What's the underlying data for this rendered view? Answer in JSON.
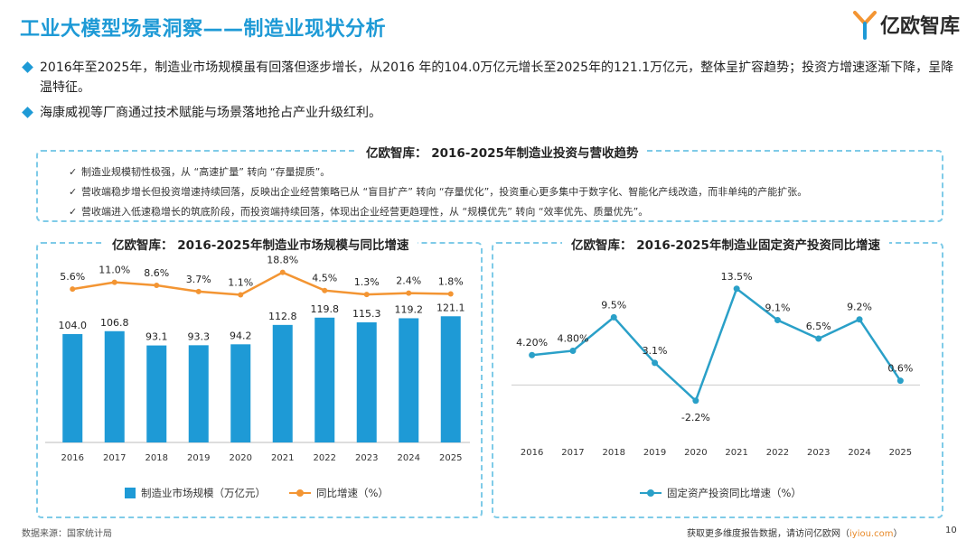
{
  "header": {
    "title": "工业大模型场景洞察——制造业现状分析",
    "logo_text": "亿欧智库"
  },
  "bullets": [
    "2016年至2025年，制造业市场规模虽有回落但逐步增长，从2016 年的104.0万亿元增长至2025年的121.1万亿元，整体呈扩容趋势；投资方增速逐渐下降，呈降温特征。",
    "海康威视等厂商通过技术赋能与场景落地抢占产业升级红利。"
  ],
  "summary_box": {
    "title": "亿欧智库： 2016-2025年制造业投资与营收趋势",
    "checks": [
      "制造业规模韧性极强，从 “高速扩量” 转向 “存量提质”。",
      "营收端稳步增长但投资增速持续回落，反映出企业经营策略已从 “盲目扩产” 转向 “存量优化”，投资重心更多集中于数字化、智能化产线改造，而非单纯的产能扩张。",
      "营收端进入低速稳增长的筑底阶段，而投资端持续回落，体现出企业经营更趋理性，从 “规模优先” 转向 “效率优先、质量优先”。"
    ],
    "check_mark": "✓"
  },
  "colors": {
    "accent": "#1e9ad6",
    "bar": "#1e9ad6",
    "growth_line": "#f39533",
    "invest_line": "#2aa0c8",
    "dashed_border": "#7fcbe8"
  },
  "chart_data": [
    {
      "type": "bar",
      "title": "亿欧智库： 2016-2025年制造业市场规模与同比增速",
      "categories": [
        "2016",
        "2017",
        "2018",
        "2019",
        "2020",
        "2021",
        "2022",
        "2023",
        "2024",
        "2025"
      ],
      "series": [
        {
          "name": "制造业市场规模（万亿元）",
          "type": "bar",
          "values": [
            104.0,
            106.8,
            93.1,
            93.3,
            94.2,
            112.8,
            119.8,
            115.3,
            119.2,
            121.1
          ],
          "labels": [
            "104.0",
            "106.8",
            "93.1",
            "93.3",
            "94.2",
            "112.8",
            "119.8",
            "115.3",
            "119.2",
            "121.1"
          ]
        },
        {
          "name": "同比增速（%）",
          "type": "line",
          "values": [
            5.6,
            11.0,
            8.6,
            3.7,
            1.1,
            18.8,
            4.5,
            1.3,
            2.4,
            1.8
          ],
          "labels": [
            "5.6%",
            "11.0%",
            "8.6%",
            "3.7%",
            "1.1%",
            "18.8%",
            "4.5%",
            "1.3%",
            "2.4%",
            "1.8%"
          ]
        }
      ],
      "legend_position": "bottom",
      "grid": false
    },
    {
      "type": "line",
      "title": "亿欧智库： 2016-2025年制造业固定资产投资同比增速",
      "categories": [
        "2016",
        "2017",
        "2018",
        "2019",
        "2020",
        "2021",
        "2022",
        "2023",
        "2024",
        "2025"
      ],
      "series": [
        {
          "name": "固定资产投资同比增速（%）",
          "values": [
            4.2,
            4.8,
            9.5,
            3.1,
            -2.2,
            13.5,
            9.1,
            6.5,
            9.2,
            0.6
          ],
          "labels": [
            "4.20%",
            "4.80%",
            "9.5%",
            "3.1%",
            "-2.2%",
            "13.5%",
            "9.1%",
            "6.5%",
            "9.2%",
            "0.6%"
          ]
        }
      ],
      "legend_position": "bottom",
      "grid": false
    }
  ],
  "footer": {
    "source": "数据来源：国家统计局",
    "more_text": "获取更多维度报告数据，请访问亿欧网（",
    "link_text": "iyiou.com",
    "close_paren": "）",
    "page_number": "10"
  }
}
